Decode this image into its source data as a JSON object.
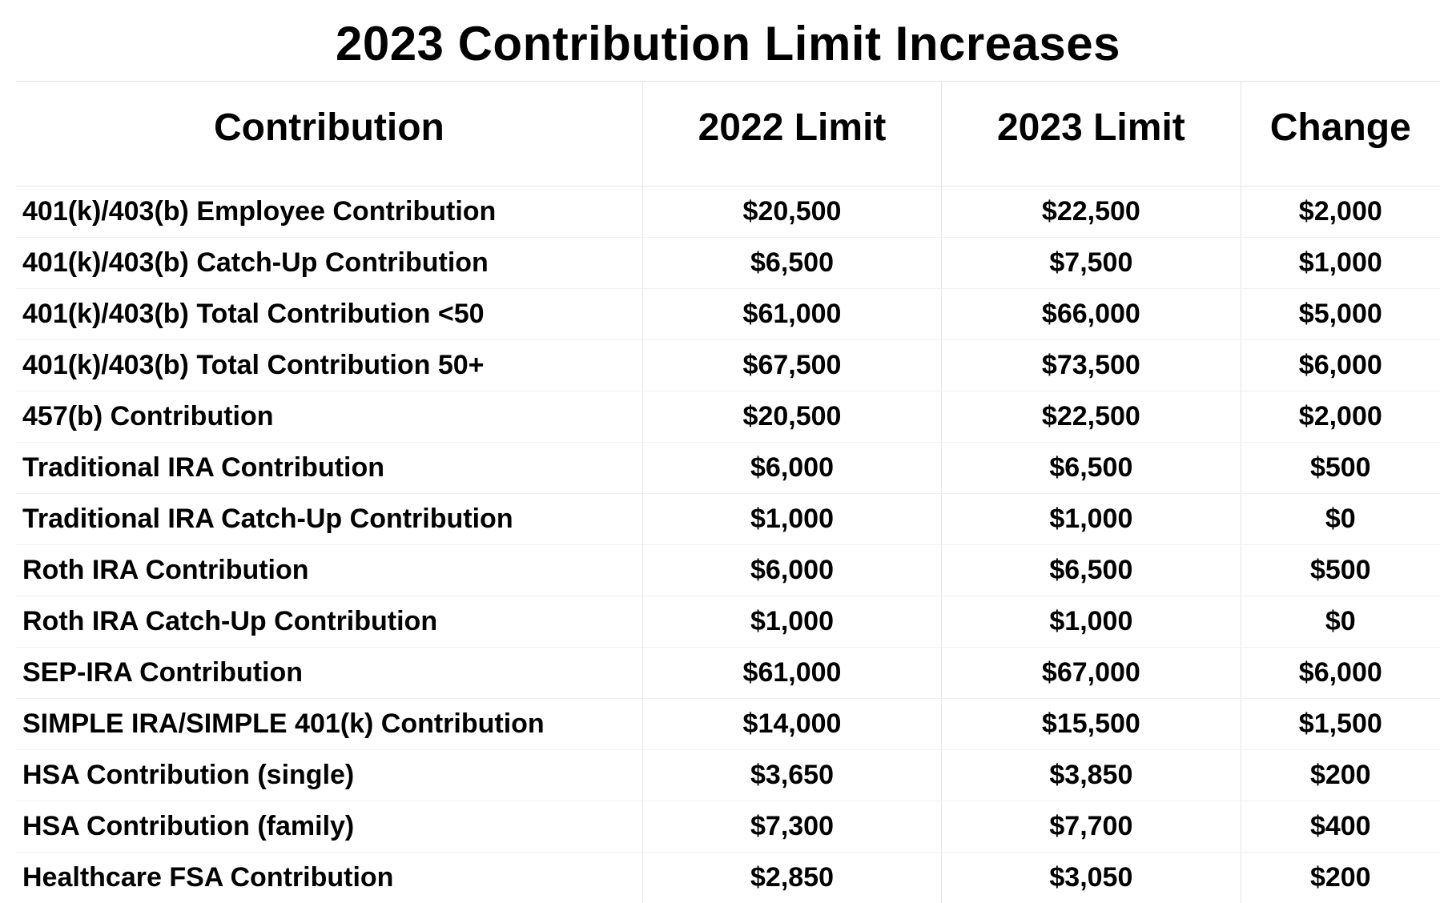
{
  "title": "2023 Contribution Limit Increases",
  "table": {
    "type": "table",
    "background_color": "#ffffff",
    "border_color": "#e5e5e5",
    "row_border_color": "#f0f0f0",
    "text_color": "#000000",
    "title_fontsize_pt": 45,
    "header_fontsize_pt": 36,
    "cell_fontsize_pt": 26,
    "font_family": "Arial",
    "columns": [
      {
        "key": "name",
        "label": "Contribution",
        "width_pct": 44,
        "align": "left"
      },
      {
        "key": "y2022",
        "label": "2022 Limit",
        "width_pct": 21,
        "align": "center"
      },
      {
        "key": "y2023",
        "label": "2023 Limit",
        "width_pct": 21,
        "align": "center"
      },
      {
        "key": "change",
        "label": "Change",
        "width_pct": 14,
        "align": "center"
      }
    ],
    "rows": [
      {
        "name": "401(k)/403(b) Employee Contribution",
        "y2022": "$20,500",
        "y2023": "$22,500",
        "change": "$2,000"
      },
      {
        "name": "401(k)/403(b) Catch-Up Contribution",
        "y2022": "$6,500",
        "y2023": "$7,500",
        "change": "$1,000"
      },
      {
        "name": "401(k)/403(b) Total Contribution <50",
        "y2022": "$61,000",
        "y2023": "$66,000",
        "change": "$5,000"
      },
      {
        "name": "401(k)/403(b) Total Contribution 50+",
        "y2022": "$67,500",
        "y2023": "$73,500",
        "change": "$6,000"
      },
      {
        "name": "457(b) Contribution",
        "y2022": "$20,500",
        "y2023": "$22,500",
        "change": "$2,000"
      },
      {
        "name": "Traditional IRA Contribution",
        "y2022": "$6,000",
        "y2023": "$6,500",
        "change": "$500"
      },
      {
        "name": "Traditional IRA Catch-Up Contribution",
        "y2022": "$1,000",
        "y2023": "$1,000",
        "change": "$0"
      },
      {
        "name": "Roth IRA Contribution",
        "y2022": "$6,000",
        "y2023": "$6,500",
        "change": "$500"
      },
      {
        "name": "Roth IRA Catch-Up Contribution",
        "y2022": "$1,000",
        "y2023": "$1,000",
        "change": "$0"
      },
      {
        "name": "SEP-IRA Contribution",
        "y2022": "$61,000",
        "y2023": "$67,000",
        "change": "$6,000"
      },
      {
        "name": "SIMPLE IRA/SIMPLE 401(k) Contribution",
        "y2022": "$14,000",
        "y2023": "$15,500",
        "change": "$1,500"
      },
      {
        "name": "HSA Contribution (single)",
        "y2022": "$3,650",
        "y2023": "$3,850",
        "change": "$200"
      },
      {
        "name": "HSA Contribution (family)",
        "y2022": "$7,300",
        "y2023": "$7,700",
        "change": "$400"
      },
      {
        "name": "Healthcare FSA Contribution",
        "y2022": "$2,850",
        "y2023": "$3,050",
        "change": "$200"
      }
    ]
  }
}
